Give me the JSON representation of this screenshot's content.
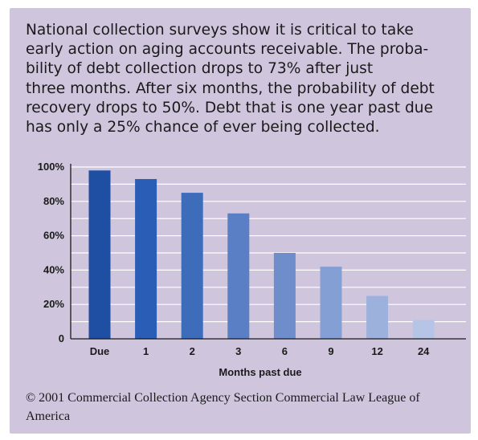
{
  "intro_lines": [
    "National collection surveys show it is critical to take",
    "early action on aging accounts receivable. The proba-",
    "bility of debt collection drops to 73% after just",
    "three months. After six months, the probability of debt",
    "recovery drops to 50%. Debt that is one year past due",
    "has only a 25% chance of ever being collected."
  ],
  "credit": "© 2001 Commercial Collection Agency Section Commercial Law League of America",
  "colors": {
    "panel": "#cfc6de",
    "grid": "#ffffff",
    "bars": [
      "#1f4fa3",
      "#2a5db5",
      "#3d6cbb",
      "#5a7fc4",
      "#6e8dca",
      "#849fd4",
      "#9cb1dc",
      "#b6c5e6"
    ]
  },
  "chart_data": {
    "type": "bar",
    "title": "",
    "xlabel": "Months past due",
    "ylabel": "",
    "categories": [
      "Due",
      "1",
      "2",
      "3",
      "6",
      "9",
      "12",
      "24"
    ],
    "values": [
      98,
      93,
      85,
      73,
      50,
      42,
      25,
      11
    ],
    "ylim": [
      0,
      100
    ],
    "yticks": [
      0,
      20,
      40,
      60,
      80,
      100
    ],
    "ytick_labels": [
      "0",
      "20%",
      "40%",
      "60%",
      "80%",
      "100%"
    ],
    "grid": "horizontal",
    "legend": "none"
  }
}
